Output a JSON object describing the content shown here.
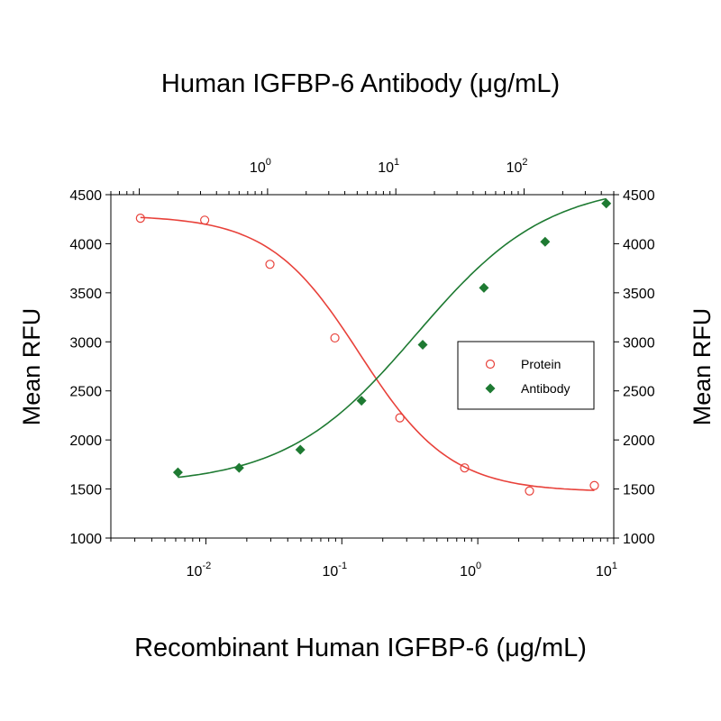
{
  "chart_data": {
    "type": "scatter",
    "title": "Human IGFBP-6 Antibody (μg/mL)",
    "xlabel": "Recombinant Human IGFBP-6 (μg/mL)",
    "ylabel_left": "Mean RFU",
    "ylabel_right": "Mean RFU",
    "ylim": [
      1000,
      4500
    ],
    "yticks": [
      1000,
      1500,
      2000,
      2500,
      3000,
      3500,
      4000,
      4500
    ],
    "x_bottom": {
      "scale": "log",
      "lim": [
        0.002,
        10
      ],
      "ticks": [
        0.01,
        0.1,
        1,
        10
      ],
      "tick_labels": [
        {
          "base": "10",
          "exp": "-2"
        },
        {
          "base": "10",
          "exp": "-1"
        },
        {
          "base": "10",
          "exp": "0"
        },
        {
          "base": "10",
          "exp": "1"
        }
      ]
    },
    "x_top": {
      "scale": "log",
      "lim": [
        0.06,
        500
      ],
      "ticks": [
        1,
        10,
        100
      ],
      "tick_labels": [
        {
          "base": "10",
          "exp": "0"
        },
        {
          "base": "10",
          "exp": "1"
        },
        {
          "base": "10",
          "exp": "2"
        }
      ]
    },
    "legend_position": "right",
    "grid": false,
    "series": [
      {
        "name": "Protein",
        "axis": "bottom",
        "marker": "open-circle",
        "color": "#e8413a",
        "x": [
          0.0033,
          0.0098,
          0.0296,
          0.0889,
          0.267,
          0.8,
          2.4,
          7.2
        ],
        "y": [
          4260,
          4240,
          3790,
          3040,
          2225,
          1715,
          1480,
          1535
        ],
        "fit": {
          "top": 4290,
          "bottom": 1470,
          "ec50": 0.135,
          "hill": 1.3
        }
      },
      {
        "name": "Antibody",
        "axis": "top",
        "marker": "filled-diamond",
        "color": "#1e7a32",
        "x": [
          0.2,
          0.6,
          1.8,
          5.4,
          16.2,
          48.6,
          145.8,
          437.4
        ],
        "y": [
          1670,
          1715,
          1900,
          2400,
          2970,
          3550,
          4020,
          4410
        ],
        "fit": {
          "top": 4620,
          "bottom": 1540,
          "ec50": 14.5,
          "hill": 0.85
        }
      }
    ]
  }
}
